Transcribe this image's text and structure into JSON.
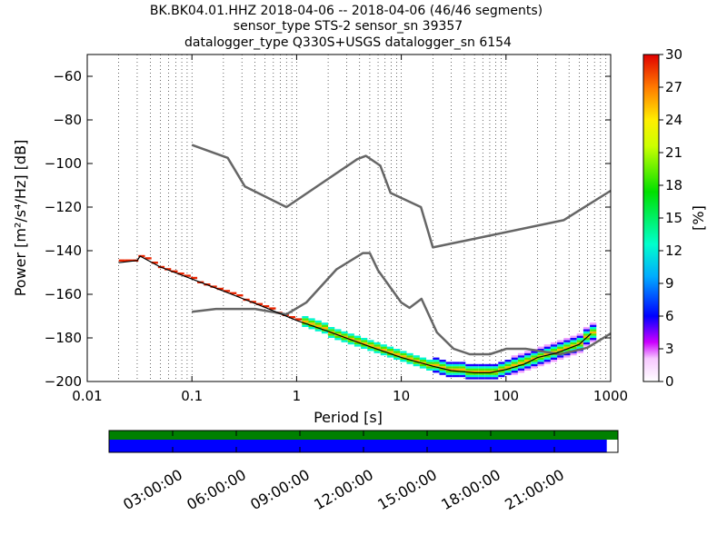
{
  "chart_data": {
    "type": "heatmap",
    "title_lines": [
      "BK.BK04.01.HHZ   2018-04-06 -- 2018-04-06  (46/46 segments)",
      "sensor_type STS-2 sensor_sn 39357",
      "datalogger_type Q330S+USGS datalogger_sn 6154"
    ],
    "xlabel": "Period [s]",
    "ylabel": "Power [m²/s⁴/Hz] [dB]",
    "x_scale": "log",
    "xlim": [
      0.01,
      1000
    ],
    "ylim": [
      -200,
      -50
    ],
    "x_ticks": [
      0.01,
      0.1,
      1,
      10,
      100,
      1000
    ],
    "x_tick_labels": [
      "0.01",
      "0.1",
      "1",
      "10",
      "100",
      "1000"
    ],
    "y_ticks": [
      -200,
      -180,
      -160,
      -140,
      -120,
      -100,
      -80,
      -60
    ],
    "y_tick_labels": [
      "−200",
      "−180",
      "−160",
      "−140",
      "−120",
      "−100",
      "−80",
      "−60"
    ],
    "grid": "dotted vertical at period decades",
    "colorbar": {
      "label": "[%]",
      "range": [
        0,
        30
      ],
      "ticks": [
        0,
        3,
        6,
        9,
        12,
        15,
        18,
        21,
        24,
        27,
        30
      ],
      "colormap": "pqlx"
    },
    "nhnm": {
      "x": [
        0.1,
        0.22,
        0.32,
        0.8,
        3.8,
        4.6,
        6.3,
        7.9,
        15.4,
        20,
        354.8,
        1000
      ],
      "y": [
        -91.5,
        -97.4,
        -110.5,
        -120,
        -98,
        -96.5,
        -101,
        -113.5,
        -120,
        -138.5,
        -126,
        -112.5
      ]
    },
    "nlnm": {
      "x": [
        0.1,
        0.17,
        0.4,
        0.8,
        1.24,
        2.4,
        4.3,
        5,
        6,
        10,
        12,
        15.6,
        21.9,
        31.6,
        45,
        70,
        101,
        154,
        328,
        600,
        1000
      ],
      "y": [
        -168,
        -166.7,
        -166.7,
        -169.2,
        -163.7,
        -148.6,
        -141.1,
        -141.1,
        -149,
        -163.8,
        -166.2,
        -162.1,
        -177.5,
        -185,
        -187.5,
        -187.5,
        -185,
        -185,
        -187.5,
        -184.5,
        -178
      ]
    },
    "mode_curve": {
      "x": [
        0.02,
        0.03,
        0.032,
        0.05,
        0.1,
        0.2,
        0.5,
        1,
        2,
        5,
        10,
        20,
        30,
        50,
        70,
        100,
        150,
        200,
        300,
        500,
        650
      ],
      "y": [
        -145.5,
        -144.5,
        -142.5,
        -147.5,
        -153,
        -158.5,
        -166,
        -172,
        -177,
        -184,
        -189,
        -193,
        -195,
        -196,
        -196,
        -194.5,
        -192,
        -189,
        -187,
        -183,
        -178
      ]
    },
    "time_axis": {
      "tick_labels": [
        "03:00:00",
        "06:00:00",
        "09:00:00",
        "12:00:00",
        "15:00:00",
        "18:00:00",
        "21:00:00"
      ],
      "data_coverage_fraction": 1.0,
      "psd_coverage_fraction": 0.978,
      "colors": {
        "data": "#008000",
        "psd": "#0000ff"
      }
    },
    "colors": {
      "noise_models": "#666666",
      "mode": "#000000"
    }
  }
}
